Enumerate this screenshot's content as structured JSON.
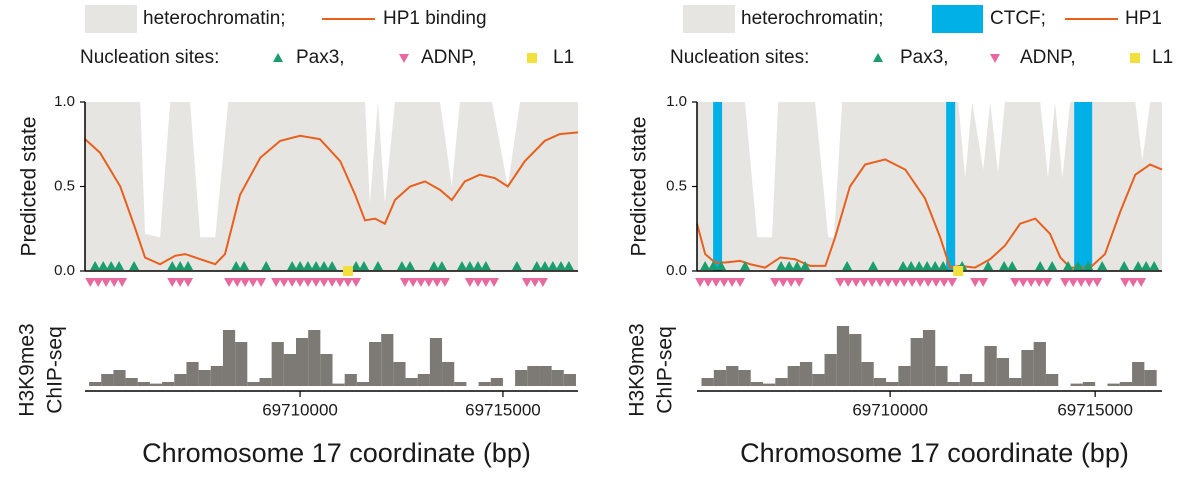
{
  "chart_data": [
    {
      "type": "track",
      "series": [
        {
          "name": "heterochromatin;",
          "type": "area",
          "color": "#e6e5e2",
          "x": [
            69704700,
            69706060,
            69706180,
            69706550,
            69706800,
            69707290,
            69707540,
            69707910,
            69708230,
            69711600,
            69711720,
            69711920,
            69712090,
            69712340,
            69713450,
            69713740,
            69713940,
            69714730,
            69715120,
            69715420,
            69716850
          ],
          "values": [
            1,
            1,
            0.22,
            0.2,
            1,
            1,
            0.2,
            0.2,
            1,
            1,
            0.4,
            1,
            0.4,
            1,
            1,
            0.5,
            1,
            1,
            0.5,
            1,
            1
          ]
        },
        {
          "name": "HP1 binding",
          "type": "line",
          "color": "#e8601c",
          "x": [
            69704700,
            69705070,
            69705570,
            69705940,
            69706180,
            69706550,
            69706920,
            69707170,
            69707540,
            69707910,
            69708150,
            69708520,
            69709020,
            69709510,
            69710000,
            69710490,
            69710990,
            69711360,
            69711600,
            69711850,
            69712090,
            69712340,
            69712710,
            69713080,
            69713450,
            69713740,
            69714060,
            69714430,
            69714800,
            69715120,
            69715540,
            69716030,
            69716400,
            69716850
          ],
          "values": [
            0.78,
            0.7,
            0.5,
            0.25,
            0.08,
            0.04,
            0.09,
            0.1,
            0.07,
            0.04,
            0.1,
            0.45,
            0.67,
            0.77,
            0.8,
            0.78,
            0.65,
            0.45,
            0.3,
            0.31,
            0.28,
            0.42,
            0.5,
            0.53,
            0.48,
            0.42,
            0.53,
            0.57,
            0.55,
            0.5,
            0.65,
            0.77,
            0.81,
            0.82
          ]
        }
      ],
      "nucleation_label": "Nucleation sites:",
      "sites": [
        {
          "name": "Pax3,",
          "marker": "triangle-up",
          "color": "#1b9e6e",
          "x": [
            69704950,
            69705150,
            69705345,
            69705540,
            69705910,
            69706850,
            69707045,
            69707240,
            69708425,
            69708620,
            69709165,
            69709805,
            69710000,
            69710195,
            69710395,
            69710590,
            69710790,
            69711380,
            69711575,
            69711920,
            69712510,
            69712710,
            69713300,
            69713495,
            69713990,
            69714185,
            69714385,
            69714580,
            69715345,
            69715835,
            69716035,
            69716230,
            69716430,
            69716625
          ]
        },
        {
          "name": "ADNP,",
          "marker": "triangle-down",
          "color": "#e8699f",
          "x": [
            69704830,
            69705025,
            69705220,
            69705420,
            69705615,
            69706850,
            69707045,
            69707240,
            69708250,
            69708450,
            69708645,
            69708840,
            69709040,
            69709410,
            69709605,
            69709805,
            69710000,
            69710195,
            69710395,
            69710590,
            69710790,
            69710985,
            69711180,
            69711380,
            69712585,
            69712785,
            69712980,
            69713175,
            69713375,
            69713570,
            69714185,
            69714385,
            69714580,
            69714780,
            69715590,
            69715790,
            69715985
          ]
        },
        {
          "name": "L1",
          "marker": "square",
          "color": "#f2e03c",
          "x": [
            69711180
          ]
        }
      ],
      "ylabel": "Predicted state",
      "ylim": [
        0,
        1
      ],
      "yticks": [
        {
          "value": 0,
          "label": "0.0"
        },
        {
          "value": 0.5,
          "label": "0.5"
        },
        {
          "value": 1,
          "label": "1.0"
        }
      ],
      "xlim": [
        69704700,
        69716850
      ],
      "xticks": [
        69710000,
        69715000
      ],
      "xlabel": "Chromosome 17 coordinate (bp)",
      "chip": {
        "ylabel": [
          "H3K9me3",
          "ChIP-seq"
        ],
        "color": "#7d7a76",
        "bins": [
          69704800,
          69705100,
          69705400,
          69705700,
          69706000,
          69706300,
          69706600,
          69706900,
          69707200,
          69707500,
          69707800,
          69708100,
          69708400,
          69708700,
          69709000,
          69709300,
          69709600,
          69709900,
          69710200,
          69710500,
          69710800,
          69711100,
          69711400,
          69711700,
          69712000,
          69712300,
          69712600,
          69712900,
          69713200,
          69713500,
          69713800,
          69714100,
          69714400,
          69714700,
          69715000,
          69715300,
          69715600,
          69715900,
          69716200,
          69716500,
          69716800
        ],
        "values": [
          5,
          15,
          20,
          10,
          5,
          3,
          5,
          15,
          30,
          20,
          25,
          70,
          55,
          5,
          10,
          55,
          40,
          60,
          70,
          40,
          3,
          15,
          5,
          55,
          65,
          30,
          10,
          15,
          60,
          30,
          5,
          0,
          5,
          10,
          0,
          20,
          25,
          25,
          20,
          15
        ]
      }
    },
    {
      "type": "track",
      "series": [
        {
          "name": "heterochromatin;",
          "type": "area",
          "color": "#e6e5e2",
          "x": [
            69705290,
            69706460,
            69706760,
            69707120,
            69707270,
            69708170,
            69708490,
            69708630,
            69708830,
            69711660,
            69711830,
            69712000,
            69712270,
            69712440,
            69712630,
            69712800,
            69713660,
            69713850,
            69714020,
            69714200,
            69714390,
            69715980,
            69716150,
            69716340,
            69716630
          ],
          "values": [
            1,
            1,
            0.2,
            0.2,
            1,
            1,
            0.2,
            0.2,
            1,
            1,
            0.55,
            1,
            0.6,
            1,
            0.58,
            1,
            1,
            0.55,
            1,
            0.55,
            1,
            1,
            0.65,
            1,
            1
          ]
        },
        {
          "name": "CTCF;",
          "type": "span",
          "color": "#00b0e6",
          "starts": [
            69705683,
            69711366,
            69714488
          ],
          "ends": [
            69705902,
            69711585,
            69714927
          ]
        },
        {
          "name": "HP1",
          "type": "line",
          "color": "#e8601c",
          "x": [
            69705290,
            69705490,
            69705730,
            69705980,
            69706340,
            69706590,
            69706950,
            69707320,
            69707680,
            69708050,
            69708420,
            69708660,
            69709020,
            69709390,
            69709880,
            69710370,
            69710850,
            69711220,
            69711460,
            69711710,
            69712070,
            69712440,
            69712800,
            69713170,
            69713540,
            69713900,
            69714150,
            69714390,
            69714880,
            69715240,
            69715610,
            69715980,
            69716340,
            69716630
          ],
          "values": [
            0.28,
            0.1,
            0.05,
            0.05,
            0.06,
            0.04,
            0.02,
            0.08,
            0.07,
            0.03,
            0.03,
            0.2,
            0.5,
            0.63,
            0.66,
            0.6,
            0.43,
            0.2,
            0.02,
            0.03,
            0.02,
            0.07,
            0.15,
            0.28,
            0.31,
            0.22,
            0.08,
            0.02,
            0.02,
            0.1,
            0.35,
            0.57,
            0.63,
            0.6
          ]
        }
      ],
      "nucleation_label": "Nucleation sites:",
      "sites": [
        {
          "name": "Pax3,",
          "marker": "triangle-up",
          "color": "#1b9e6e",
          "x": [
            69705488,
            69705683,
            69705878,
            69706463,
            69707341,
            69707537,
            69707732,
            69707927,
            69708951,
            69709585,
            69710317,
            69710512,
            69710707,
            69710902,
            69711098,
            69711293,
            69711756,
            69712390,
            69712780,
            69712976,
            69713659,
            69713951,
            69714341,
            69714585,
            69714829,
            69715171,
            69715707,
            69716049,
            69716244,
            69716439
          ]
        },
        {
          "name": "ADNP,",
          "marker": "triangle-down",
          "color": "#e8699f",
          "x": [
            69705366,
            69705561,
            69705756,
            69705951,
            69706146,
            69706341,
            69707195,
            69707390,
            69707585,
            69707781,
            69708780,
            69708976,
            69709171,
            69709366,
            69709561,
            69709756,
            69709951,
            69710146,
            69710341,
            69710537,
            69710732,
            69710927,
            69711122,
            69711317,
            69711512,
            69712073,
            69712268,
            69713049,
            69713244,
            69713439,
            69713634,
            69713829,
            69714268,
            69714463,
            69714658,
            69714854,
            69715049,
            69715732,
            69715927,
            69716122
          ]
        },
        {
          "name": "L1",
          "marker": "square",
          "color": "#f2e03c",
          "x": [
            69711659
          ]
        }
      ],
      "ylabel": "Predicted state",
      "ylim": [
        0,
        1
      ],
      "yticks": [
        {
          "value": 0,
          "label": "0.0"
        },
        {
          "value": 0.5,
          "label": "0.5"
        },
        {
          "value": 1,
          "label": "1.0"
        }
      ],
      "xlim": [
        69705290,
        69716630
      ],
      "xticks": [
        69710000,
        69715000
      ],
      "xlabel": "Chromosome 17 coordinate (bp)",
      "chip": {
        "ylabel": [
          "H3K9me3",
          "ChIP-seq"
        ],
        "color": "#7d7a76",
        "bins": [
          69705400,
          69705700,
          69706000,
          69706300,
          69706600,
          69706900,
          69707200,
          69707500,
          69707800,
          69708100,
          69708400,
          69708700,
          69709000,
          69709300,
          69709600,
          69709900,
          69710200,
          69710500,
          69710800,
          69711100,
          69711400,
          69711700,
          69712000,
          69712300,
          69712600,
          69712900,
          69713200,
          69713500,
          69713800,
          69714100,
          69714400,
          69714700,
          69715000,
          69715300,
          69715600,
          69715900,
          69716200,
          69716500
        ],
        "values": [
          10,
          20,
          25,
          20,
          5,
          3,
          10,
          25,
          30,
          15,
          40,
          75,
          65,
          30,
          10,
          5,
          25,
          60,
          70,
          25,
          5,
          15,
          5,
          50,
          35,
          10,
          45,
          55,
          15,
          0,
          3,
          5,
          0,
          3,
          5,
          30,
          20
        ]
      }
    }
  ]
}
